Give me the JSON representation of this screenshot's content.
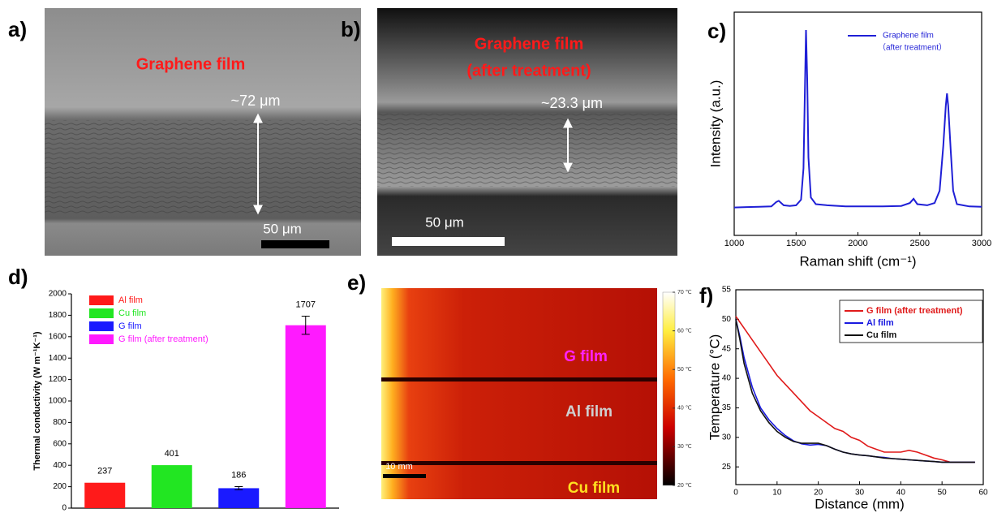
{
  "images": [
    {
      "panel_label": "a)",
      "title": "Graphene film",
      "thickness": "~72 μm",
      "scale_bar": "50 μm"
    },
    {
      "panel_label": "b)",
      "title": "Graphene film",
      "subtitle": "(after treatment)",
      "thickness": "~23.3 μm",
      "scale_bar": "50 μm"
    },
    {
      "panel_label": "e)",
      "labels": [
        "G film",
        "Al film",
        "Cu film"
      ],
      "scale_bar": "10 mm",
      "colorbar_ticks": [
        {
          "value": 70,
          "label": "70 ℃"
        },
        {
          "value": 60,
          "label": "60 ℃"
        },
        {
          "value": 50,
          "label": "50 ℃"
        },
        {
          "value": 40,
          "label": "40 ℃"
        },
        {
          "value": 30,
          "label": "30 ℃"
        },
        {
          "value": 20,
          "label": "20 ℃"
        }
      ],
      "colorbar_lim": [
        20,
        70
      ]
    }
  ],
  "chart_data": [
    {
      "type": "line",
      "panel_label": "c)",
      "x_label": "Raman shift (cm⁻¹)",
      "y_label": "Intensity (a.u.)",
      "xlim": [
        1000,
        3000
      ],
      "xticks": [
        1000,
        1500,
        2000,
        2500,
        3000
      ],
      "ylim": [
        0,
        100
      ],
      "legend": "upper right",
      "legend_note": "（after treatment）",
      "x": [
        1000,
        1100,
        1200,
        1300,
        1340,
        1360,
        1400,
        1450,
        1500,
        1540,
        1560,
        1570,
        1580,
        1590,
        1600,
        1620,
        1660,
        1750,
        1900,
        2050,
        2200,
        2350,
        2420,
        2450,
        2480,
        2560,
        2620,
        2660,
        2690,
        2710,
        2720,
        2730,
        2750,
        2770,
        2800,
        2900,
        3000
      ],
      "series": [
        {
          "name": "Graphene film",
          "color": "#1f1fd6",
          "values": [
            12.5,
            12.7,
            12.8,
            13,
            15,
            15.5,
            13.5,
            13.2,
            13.5,
            16,
            30,
            60,
            92,
            70,
            35,
            17,
            14,
            13.5,
            13,
            13,
            13,
            13.2,
            14.5,
            16.4,
            14,
            13.5,
            14.5,
            20,
            40,
            58,
            63.6,
            58,
            38,
            20,
            14,
            13,
            12.8
          ]
        }
      ]
    },
    {
      "type": "bar",
      "panel_label": "d)",
      "y_label": "Thermal conductivity (W m⁻¹K⁻¹)",
      "ylim": [
        0,
        2000
      ],
      "yticks": [
        0,
        200,
        400,
        600,
        800,
        1000,
        1200,
        1400,
        1600,
        1800,
        2000
      ],
      "legend": "upper left",
      "series": [
        {
          "name": "Al film",
          "color": "#ff1a1a",
          "values": [
            237
          ]
        },
        {
          "name": "Cu film",
          "color": "#22e622",
          "values": [
            401
          ]
        },
        {
          "name": "G film",
          "color": "#1a1aff",
          "values": [
            186
          ],
          "errors": [
            15
          ]
        },
        {
          "name": "G film (after treatment)",
          "color": "#ff1aff",
          "values": [
            1707
          ],
          "errors": [
            85
          ]
        }
      ]
    },
    {
      "type": "line",
      "panel_label": "f)",
      "x_label": "Distance (mm)",
      "y_label": "Temperature (°C)",
      "xlim": [
        0,
        60
      ],
      "xticks": [
        0,
        10,
        20,
        30,
        40,
        50,
        60
      ],
      "ylim": [
        22,
        55
      ],
      "yticks": [
        25,
        30,
        35,
        40,
        45,
        50,
        55
      ],
      "legend": "upper right",
      "x": [
        0,
        1,
        2,
        4,
        6,
        8,
        10,
        12,
        14,
        16,
        18,
        20,
        22,
        24,
        26,
        28,
        30,
        32,
        34,
        36,
        38,
        40,
        42,
        44,
        46,
        48,
        50,
        52,
        54,
        56,
        58
      ],
      "series": [
        {
          "name": "G film (after treatment)",
          "color": "#e01a1a",
          "values": [
            50.5,
            49.5,
            48.5,
            46.5,
            44.5,
            42.5,
            40.5,
            39,
            37.5,
            36,
            34.5,
            33.5,
            32.5,
            31.5,
            31,
            30,
            29.5,
            28.5,
            28,
            27.5,
            27.5,
            27.5,
            27.8,
            27.5,
            27,
            26.5,
            26.2,
            25.8,
            25.8,
            25.8,
            25.8
          ]
        },
        {
          "name": "Al film",
          "color": "#1a1ae0",
          "values": [
            50,
            47,
            43.5,
            38.5,
            35,
            33,
            31.5,
            30.3,
            29.4,
            28.9,
            28.7,
            28.8,
            28.6,
            28,
            27.5,
            27.2,
            27,
            26.9,
            26.7,
            26.6,
            26.4,
            26.3,
            26.2,
            26.1,
            26,
            25.9,
            25.8,
            25.8,
            25.8,
            25.8,
            25.8
          ]
        },
        {
          "name": "Cu film",
          "color": "#111111",
          "values": [
            50,
            46.5,
            42.5,
            37.5,
            34.5,
            32.5,
            31,
            30,
            29.3,
            29,
            29,
            29,
            28.6,
            28,
            27.5,
            27.2,
            27,
            26.9,
            26.7,
            26.5,
            26.4,
            26.3,
            26.2,
            26.1,
            26,
            25.9,
            25.8,
            25.8,
            25.8,
            25.8,
            25.8
          ]
        }
      ]
    }
  ]
}
